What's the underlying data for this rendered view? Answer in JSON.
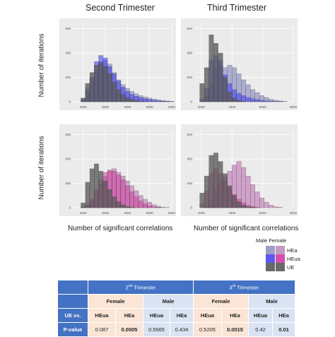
{
  "titles": {
    "second": "Second Trimester",
    "third": "Third Trimester"
  },
  "axis": {
    "ylabel_top": "Number of iterations",
    "ylabel_bottom": "Number of iterations",
    "xlabel_left": "Number of significant correlations",
    "xlabel_right": "Number of significant correlations"
  },
  "legend": {
    "header": "Male Female",
    "items": [
      "HEa",
      "HEua",
      "UE"
    ],
    "colors": {
      "male_hea": "#9e9ec8",
      "female_hea": "#c69ac2",
      "male_heua": "#5a5af0",
      "female_heua": "#d64fac",
      "ue": "#6a6a6a"
    }
  },
  "colors": {
    "male_hea": "#9e9ec8",
    "male_heua": "#4444ee",
    "ue": "#5a5a5a",
    "female_hea": "#c990c2",
    "female_heua": "#d0409c",
    "panel_bg": "#ebebeb",
    "grid": "#ffffff",
    "table_header": "#4472c4"
  },
  "chart_data": [
    {
      "type": "bar",
      "panel": "male-second",
      "title": "Second Trimester",
      "xlabel": "",
      "ylabel": "Number of iterations",
      "xlim": [
        1500,
        6000
      ],
      "ylim": [
        0,
        650
      ],
      "x_ticks": [
        "2000",
        "3000",
        "4000",
        "5000",
        "6000"
      ],
      "y_ticks": [
        "0",
        "200",
        "400",
        "600"
      ],
      "bin_start": 1900,
      "bin_width": 200,
      "series": [
        {
          "name": "HEa",
          "values": [
            20,
            110,
            190,
            250,
            330,
            340,
            310,
            240,
            180,
            140,
            110,
            85,
            65,
            50,
            40,
            30,
            22,
            15,
            10,
            6,
            3
          ]
        },
        {
          "name": "HEua",
          "values": [
            15,
            90,
            200,
            330,
            380,
            360,
            290,
            230,
            170,
            120,
            85,
            60,
            45,
            35,
            25,
            18,
            12,
            8,
            5,
            3,
            2
          ]
        },
        {
          "name": "UE",
          "values": [
            30,
            150,
            240,
            300,
            320,
            290,
            230,
            160,
            100,
            60,
            35,
            20,
            10,
            5,
            2,
            0,
            0,
            0,
            0,
            0,
            0
          ]
        }
      ]
    },
    {
      "type": "bar",
      "panel": "male-third",
      "title": "Third Trimester",
      "xlabel": "",
      "ylabel": "",
      "xlim": [
        1500,
        8000
      ],
      "ylim": [
        0,
        650
      ],
      "x_ticks": [
        "2000",
        "4000",
        "6000",
        "8000"
      ],
      "y_ticks": [
        "0",
        "200",
        "400",
        "600"
      ],
      "bin_start": 1900,
      "bin_width": 300,
      "series": [
        {
          "name": "HEa",
          "values": [
            5,
            40,
            140,
            270,
            300,
            280,
            300,
            280,
            230,
            180,
            140,
            100,
            75,
            50,
            35,
            20,
            12,
            6,
            3,
            0,
            0,
            0
          ]
        },
        {
          "name": "HEua",
          "values": [
            20,
            110,
            340,
            380,
            340,
            220,
            150,
            100,
            70,
            50,
            35,
            25,
            18,
            12,
            8,
            5,
            3,
            2,
            0,
            0,
            0,
            0
          ]
        },
        {
          "name": "UE",
          "values": [
            150,
            280,
            550,
            480,
            400,
            200,
            80,
            30,
            10,
            3,
            0,
            0,
            0,
            0,
            0,
            0,
            0,
            0,
            0,
            0,
            0,
            0
          ]
        }
      ]
    },
    {
      "type": "bar",
      "panel": "female-second",
      "title": "",
      "xlabel": "Number of significant correlations",
      "ylabel": "Number of iterations",
      "xlim": [
        1500,
        6000
      ],
      "ylim": [
        0,
        650
      ],
      "x_ticks": [
        "2000",
        "3000",
        "4000",
        "5000",
        "6000"
      ],
      "y_ticks": [
        "0",
        "200",
        "400",
        "600"
      ],
      "bin_start": 1900,
      "bin_width": 200,
      "series": [
        {
          "name": "HEa",
          "values": [
            5,
            20,
            50,
            110,
            190,
            260,
            300,
            320,
            290,
            260,
            220,
            180,
            140,
            100,
            70,
            45,
            25,
            12,
            5,
            2,
            0
          ]
        },
        {
          "name": "HEua",
          "values": [
            5,
            25,
            70,
            150,
            230,
            290,
            310,
            300,
            270,
            230,
            180,
            130,
            90,
            55,
            30,
            15,
            7,
            3,
            0,
            0,
            0
          ]
        },
        {
          "name": "UE",
          "values": [
            40,
            210,
            320,
            360,
            300,
            220,
            150,
            90,
            50,
            25,
            10,
            4,
            0,
            0,
            0,
            0,
            0,
            0,
            0,
            0,
            0
          ]
        }
      ]
    },
    {
      "type": "bar",
      "panel": "female-third",
      "title": "",
      "xlabel": "Number of significant correlations",
      "ylabel": "",
      "xlim": [
        1500,
        8000
      ],
      "ylim": [
        0,
        650
      ],
      "x_ticks": [
        "2000",
        "4000",
        "6000",
        "8000"
      ],
      "y_ticks": [
        "0",
        "200",
        "400",
        "600"
      ],
      "bin_start": 1900,
      "bin_width": 300,
      "series": [
        {
          "name": "HEa",
          "values": [
            0,
            10,
            60,
            150,
            220,
            250,
            300,
            350,
            380,
            330,
            260,
            190,
            130,
            80,
            45,
            20,
            8,
            3,
            0,
            0,
            0,
            0
          ]
        },
        {
          "name": "HEua",
          "values": [
            30,
            140,
            280,
            320,
            280,
            220,
            160,
            110,
            70,
            40,
            20,
            10,
            4,
            0,
            0,
            0,
            0,
            0,
            0,
            0,
            0,
            0
          ]
        },
        {
          "name": "UE",
          "values": [
            120,
            260,
            430,
            450,
            380,
            280,
            180,
            100,
            50,
            20,
            8,
            3,
            0,
            0,
            0,
            0,
            0,
            0,
            0,
            0,
            0,
            0
          ]
        }
      ]
    }
  ],
  "table": {
    "row1": {
      "blank": "",
      "trim2": "2",
      "trim2_sup": "nd",
      "trim2_rest": " Trimester",
      "trim3": "3",
      "trim3_sup": "rd",
      "trim3_rest": " Trimester"
    },
    "row2": {
      "blank": "",
      "female_a": "Female",
      "male_a": "Male",
      "female_b": "Female",
      "male_b": "Male"
    },
    "row3": {
      "label": "UE vs.",
      "c1": "HEua",
      "c2": "HEa",
      "c3": "HEua",
      "c4": "HEa",
      "c5": "HEua",
      "c6": "HEa",
      "c7": "HEua",
      "c8": "HEa"
    },
    "row4": {
      "label": "P-value",
      "c1": "0.087",
      "c2": "0.0005",
      "c3": "0.5665",
      "c4": "0.434",
      "c5": "0.5205",
      "c6": "0.0015",
      "c7": "0.42",
      "c8": "0.01"
    }
  }
}
